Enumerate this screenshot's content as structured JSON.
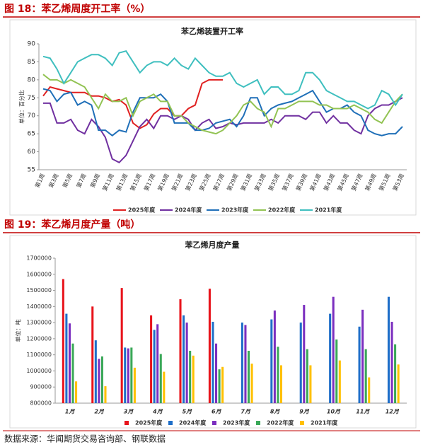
{
  "captions": [
    "图 18：苯乙烯周度开工率（%）",
    "图 19：苯乙烯月度产量（吨）"
  ],
  "source": "数据来源：华闻期货交易咨询部、钢联数据",
  "chart_data": [
    {
      "type": "line",
      "title": "苯乙烯装置开工率",
      "ylabel": "单位：百分比",
      "categories": [
        "第1周",
        null,
        "第3周",
        null,
        "第5周",
        null,
        "第7周",
        null,
        "第9周",
        null,
        "第11周",
        null,
        "第13周",
        null,
        "第15周",
        null,
        "第17周",
        null,
        "第19周",
        null,
        "第21周",
        null,
        "第23周",
        null,
        "第25周",
        null,
        "第27周",
        null,
        "第29周",
        null,
        "第31周",
        null,
        "第33周",
        null,
        "第35周",
        null,
        "第37周",
        null,
        "第39周",
        null,
        "第41周",
        null,
        "第43周",
        null,
        "第45周",
        null,
        "第47周",
        null,
        "第49周",
        null,
        "第51周",
        null,
        "第53周"
      ],
      "ylim": [
        55,
        90
      ],
      "yticks": [
        55,
        60,
        65,
        70,
        75,
        80,
        85,
        90
      ],
      "series": [
        {
          "name": "2025年度",
          "color": "#e02020",
          "values": [
            75.5,
            78,
            77.5,
            77,
            76.5,
            76.5,
            76.5,
            75.5,
            75.5,
            75,
            74,
            74.5,
            73,
            68,
            66.5,
            67.5,
            70.5,
            72,
            72,
            70,
            70,
            72,
            73,
            79,
            80,
            80,
            80,
            null,
            null,
            null,
            null,
            null,
            null,
            null,
            null,
            null,
            null,
            null,
            null,
            null,
            null,
            null,
            null,
            null,
            null,
            null,
            null,
            null,
            null,
            null,
            null,
            null,
            null
          ]
        },
        {
          "name": "2024年度",
          "color": "#7030a0",
          "values": [
            73.5,
            73.5,
            68,
            68,
            69,
            66,
            65,
            69,
            67,
            64,
            58,
            57,
            59,
            63,
            67,
            69,
            66.5,
            70,
            70,
            69,
            70,
            69,
            66,
            68,
            69,
            66.5,
            67,
            68,
            67.5,
            68,
            68,
            68,
            68,
            69,
            68,
            70,
            70,
            70,
            69,
            71,
            71,
            68,
            70,
            68,
            68,
            66,
            65,
            70,
            72,
            73,
            73,
            74,
            75
          ]
        },
        {
          "name": "2023年度",
          "color": "#1f6fb8",
          "values": [
            77.5,
            77,
            74,
            76,
            76.5,
            73,
            74,
            73,
            66,
            66,
            64.5,
            66,
            65.5,
            71,
            75,
            75,
            75,
            76,
            74,
            68,
            68,
            68,
            66,
            66,
            66.5,
            68,
            68.5,
            69,
            67,
            70,
            75,
            75,
            70,
            72,
            73,
            73.5,
            74,
            75,
            76,
            77,
            74,
            71,
            72,
            72,
            73,
            71,
            70,
            66,
            65,
            64.5,
            65,
            65,
            67
          ]
        },
        {
          "name": "2022年度",
          "color": "#92c353",
          "values": [
            81.5,
            80,
            80,
            79,
            80,
            79,
            78,
            75,
            72,
            76,
            74,
            74,
            75,
            70,
            74,
            75,
            76,
            74,
            74,
            70,
            70,
            68,
            67,
            66,
            65.5,
            65,
            66,
            68,
            70,
            73,
            74,
            72,
            71,
            67,
            72,
            72,
            73,
            74,
            74,
            74,
            73,
            73,
            72,
            72,
            72,
            73,
            72,
            71,
            69,
            68,
            71,
            74,
            76
          ]
        },
        {
          "name": "2021年度",
          "color": "#3fbfbf",
          "values": [
            86.5,
            86,
            83,
            79,
            82,
            85,
            86,
            87,
            87,
            86,
            84,
            87.5,
            88,
            85,
            82,
            84,
            85,
            85,
            84,
            86,
            84,
            83,
            86,
            84,
            82,
            81,
            81,
            82,
            79,
            78,
            79,
            80,
            76,
            78,
            78,
            76,
            76,
            77,
            82,
            82,
            80,
            77,
            76,
            75,
            74,
            74,
            73,
            72,
            73,
            77,
            76,
            73,
            76
          ]
        }
      ]
    },
    {
      "type": "bar",
      "title": "苯乙烯月度产量",
      "ylabel": "单位：吨",
      "categories": [
        "1月",
        "2月",
        "3月",
        "4月",
        "5月",
        "6月",
        "7月",
        "8月",
        "9月",
        "10月",
        "11月",
        "12月"
      ],
      "ylim": [
        800000,
        1700000
      ],
      "yticks": [
        800000,
        900000,
        1000000,
        1100000,
        1200000,
        1300000,
        1400000,
        1500000,
        1600000,
        1700000
      ],
      "series": [
        {
          "name": "2025年度",
          "color": "#e8141c",
          "values": [
            1570000,
            1400000,
            1515000,
            1345000,
            1445000,
            1510000,
            null,
            null,
            null,
            null,
            null,
            null
          ]
        },
        {
          "name": "2024年度",
          "color": "#1e6ec8",
          "values": [
            1355000,
            1190000,
            1145000,
            1255000,
            1345000,
            1305000,
            1300000,
            1320000,
            1300000,
            1355000,
            1275000,
            1460000
          ]
        },
        {
          "name": "2023年度",
          "color": "#7b2fbf",
          "values": [
            1295000,
            1075000,
            1140000,
            1290000,
            1300000,
            1170000,
            1285000,
            1375000,
            1410000,
            1460000,
            1380000,
            1305000
          ]
        },
        {
          "name": "2022年度",
          "color": "#3aa858",
          "values": [
            1170000,
            1090000,
            1145000,
            1105000,
            1125000,
            1010000,
            1125000,
            1150000,
            1135000,
            1195000,
            1135000,
            1165000
          ]
        },
        {
          "name": "2021年度",
          "color": "#ffc000",
          "values": [
            935000,
            905000,
            1020000,
            995000,
            1095000,
            1025000,
            1045000,
            1035000,
            1035000,
            1065000,
            960000,
            1040000
          ]
        }
      ]
    }
  ]
}
